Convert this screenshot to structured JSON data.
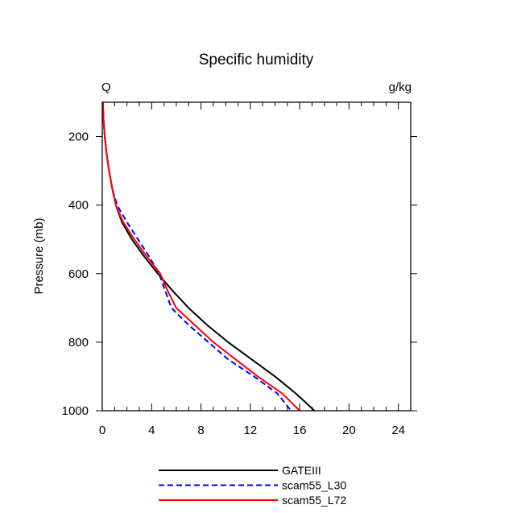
{
  "chart_data": {
    "type": "line",
    "title": "Specific humidity",
    "left_label": "Q",
    "right_label": "g/kg",
    "xlabel": "",
    "ylabel": "Pressure (mb)",
    "xlim": [
      0,
      25
    ],
    "ylim": [
      1000,
      100
    ],
    "y_inverted": true,
    "x_ticks": [
      0,
      4,
      8,
      12,
      16,
      20,
      24
    ],
    "y_ticks": [
      200,
      400,
      600,
      800,
      1000
    ],
    "x_tick_labels": [
      "0",
      "4",
      "8",
      "12",
      "16",
      "20",
      "24"
    ],
    "y_tick_labels": [
      "200",
      "400",
      "600",
      "800",
      "1000"
    ],
    "grid": false,
    "legend_position": "bottom",
    "series": [
      {
        "name": "GATEIII",
        "color": "#000000",
        "dash": "solid",
        "points": [
          [
            0.05,
            100
          ],
          [
            0.1,
            150
          ],
          [
            0.2,
            200
          ],
          [
            0.35,
            250
          ],
          [
            0.55,
            300
          ],
          [
            0.8,
            350
          ],
          [
            1.1,
            400
          ],
          [
            1.6,
            450
          ],
          [
            2.4,
            500
          ],
          [
            3.4,
            550
          ],
          [
            4.5,
            600
          ],
          [
            5.7,
            650
          ],
          [
            7.0,
            700
          ],
          [
            8.5,
            750
          ],
          [
            10.2,
            800
          ],
          [
            12.1,
            850
          ],
          [
            14.0,
            900
          ],
          [
            15.7,
            950
          ],
          [
            17.2,
            1000
          ]
        ]
      },
      {
        "name": "scam55_L30",
        "color": "#0000ff",
        "dash": "dashed",
        "points": [
          [
            0.05,
            100
          ],
          [
            0.1,
            150
          ],
          [
            0.2,
            200
          ],
          [
            0.35,
            250
          ],
          [
            0.55,
            300
          ],
          [
            0.8,
            350
          ],
          [
            1.2,
            400
          ],
          [
            2.0,
            450
          ],
          [
            2.9,
            500
          ],
          [
            3.8,
            550
          ],
          [
            4.6,
            600
          ],
          [
            5.1,
            650
          ],
          [
            5.6,
            700
          ],
          [
            7.0,
            750
          ],
          [
            8.6,
            800
          ],
          [
            10.2,
            850
          ],
          [
            12.3,
            900
          ],
          [
            14.2,
            950
          ],
          [
            15.3,
            1000
          ]
        ]
      },
      {
        "name": "scam55_L72",
        "color": "#ff0000",
        "dash": "solid",
        "points": [
          [
            0.05,
            100
          ],
          [
            0.1,
            150
          ],
          [
            0.2,
            200
          ],
          [
            0.35,
            250
          ],
          [
            0.55,
            300
          ],
          [
            0.8,
            350
          ],
          [
            1.1,
            400
          ],
          [
            1.7,
            450
          ],
          [
            2.6,
            500
          ],
          [
            3.6,
            550
          ],
          [
            4.7,
            600
          ],
          [
            5.3,
            650
          ],
          [
            6.0,
            700
          ],
          [
            7.5,
            750
          ],
          [
            9.0,
            800
          ],
          [
            10.8,
            850
          ],
          [
            12.6,
            900
          ],
          [
            14.6,
            950
          ],
          [
            16.0,
            1000
          ]
        ]
      }
    ]
  }
}
